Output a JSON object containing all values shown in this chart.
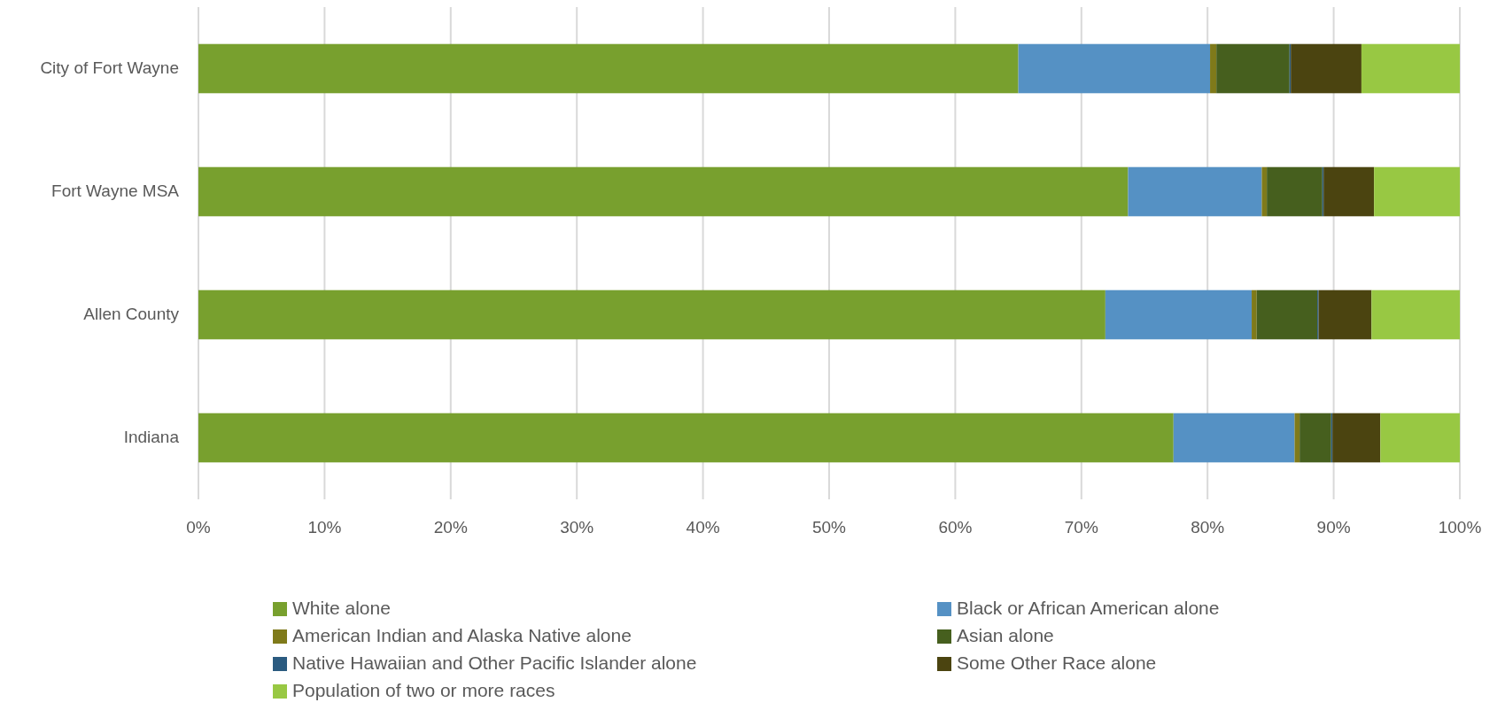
{
  "chart_data": {
    "type": "bar",
    "orientation": "horizontal",
    "stacked": true,
    "categories": [
      "City of Fort Wayne",
      "Fort Wayne MSA",
      "Allen County",
      "Indiana"
    ],
    "series": [
      {
        "name": "White alone",
        "color": "#78a02e",
        "values": [
          65.0,
          73.7,
          71.9,
          77.3
        ]
      },
      {
        "name": "Black or African American alone",
        "color": "#5591c4",
        "values": [
          15.2,
          10.6,
          11.6,
          9.6
        ]
      },
      {
        "name": "American Indian and Alaska Native alone",
        "color": "#7f7a1a",
        "values": [
          0.5,
          0.4,
          0.4,
          0.4
        ]
      },
      {
        "name": "Asian alone",
        "color": "#465f1e",
        "values": [
          5.8,
          4.4,
          4.8,
          2.5
        ]
      },
      {
        "name": "Native Hawaiian and Other Pacific Islander alone",
        "color": "#2b5b80",
        "values": [
          0.1,
          0.1,
          0.1,
          0.1
        ]
      },
      {
        "name": "Some Other Race alone",
        "color": "#4b4410",
        "values": [
          5.6,
          4.0,
          4.2,
          3.8
        ]
      },
      {
        "name": "Population of two or more races",
        "color": "#98c843",
        "values": [
          7.8,
          6.8,
          7.0,
          6.3
        ]
      }
    ],
    "xlim": [
      0,
      100
    ],
    "xticks": [
      {
        "value": 0,
        "label": "0%"
      },
      {
        "value": 10,
        "label": "10%"
      },
      {
        "value": 20,
        "label": "20%"
      },
      {
        "value": 30,
        "label": "30%"
      },
      {
        "value": 40,
        "label": "40%"
      },
      {
        "value": 50,
        "label": "50%"
      },
      {
        "value": 60,
        "label": "60%"
      },
      {
        "value": 70,
        "label": "70%"
      },
      {
        "value": 80,
        "label": "80%"
      },
      {
        "value": 90,
        "label": "90%"
      },
      {
        "value": 100,
        "label": "100%"
      }
    ],
    "grid": "x",
    "legend": "bottom"
  }
}
